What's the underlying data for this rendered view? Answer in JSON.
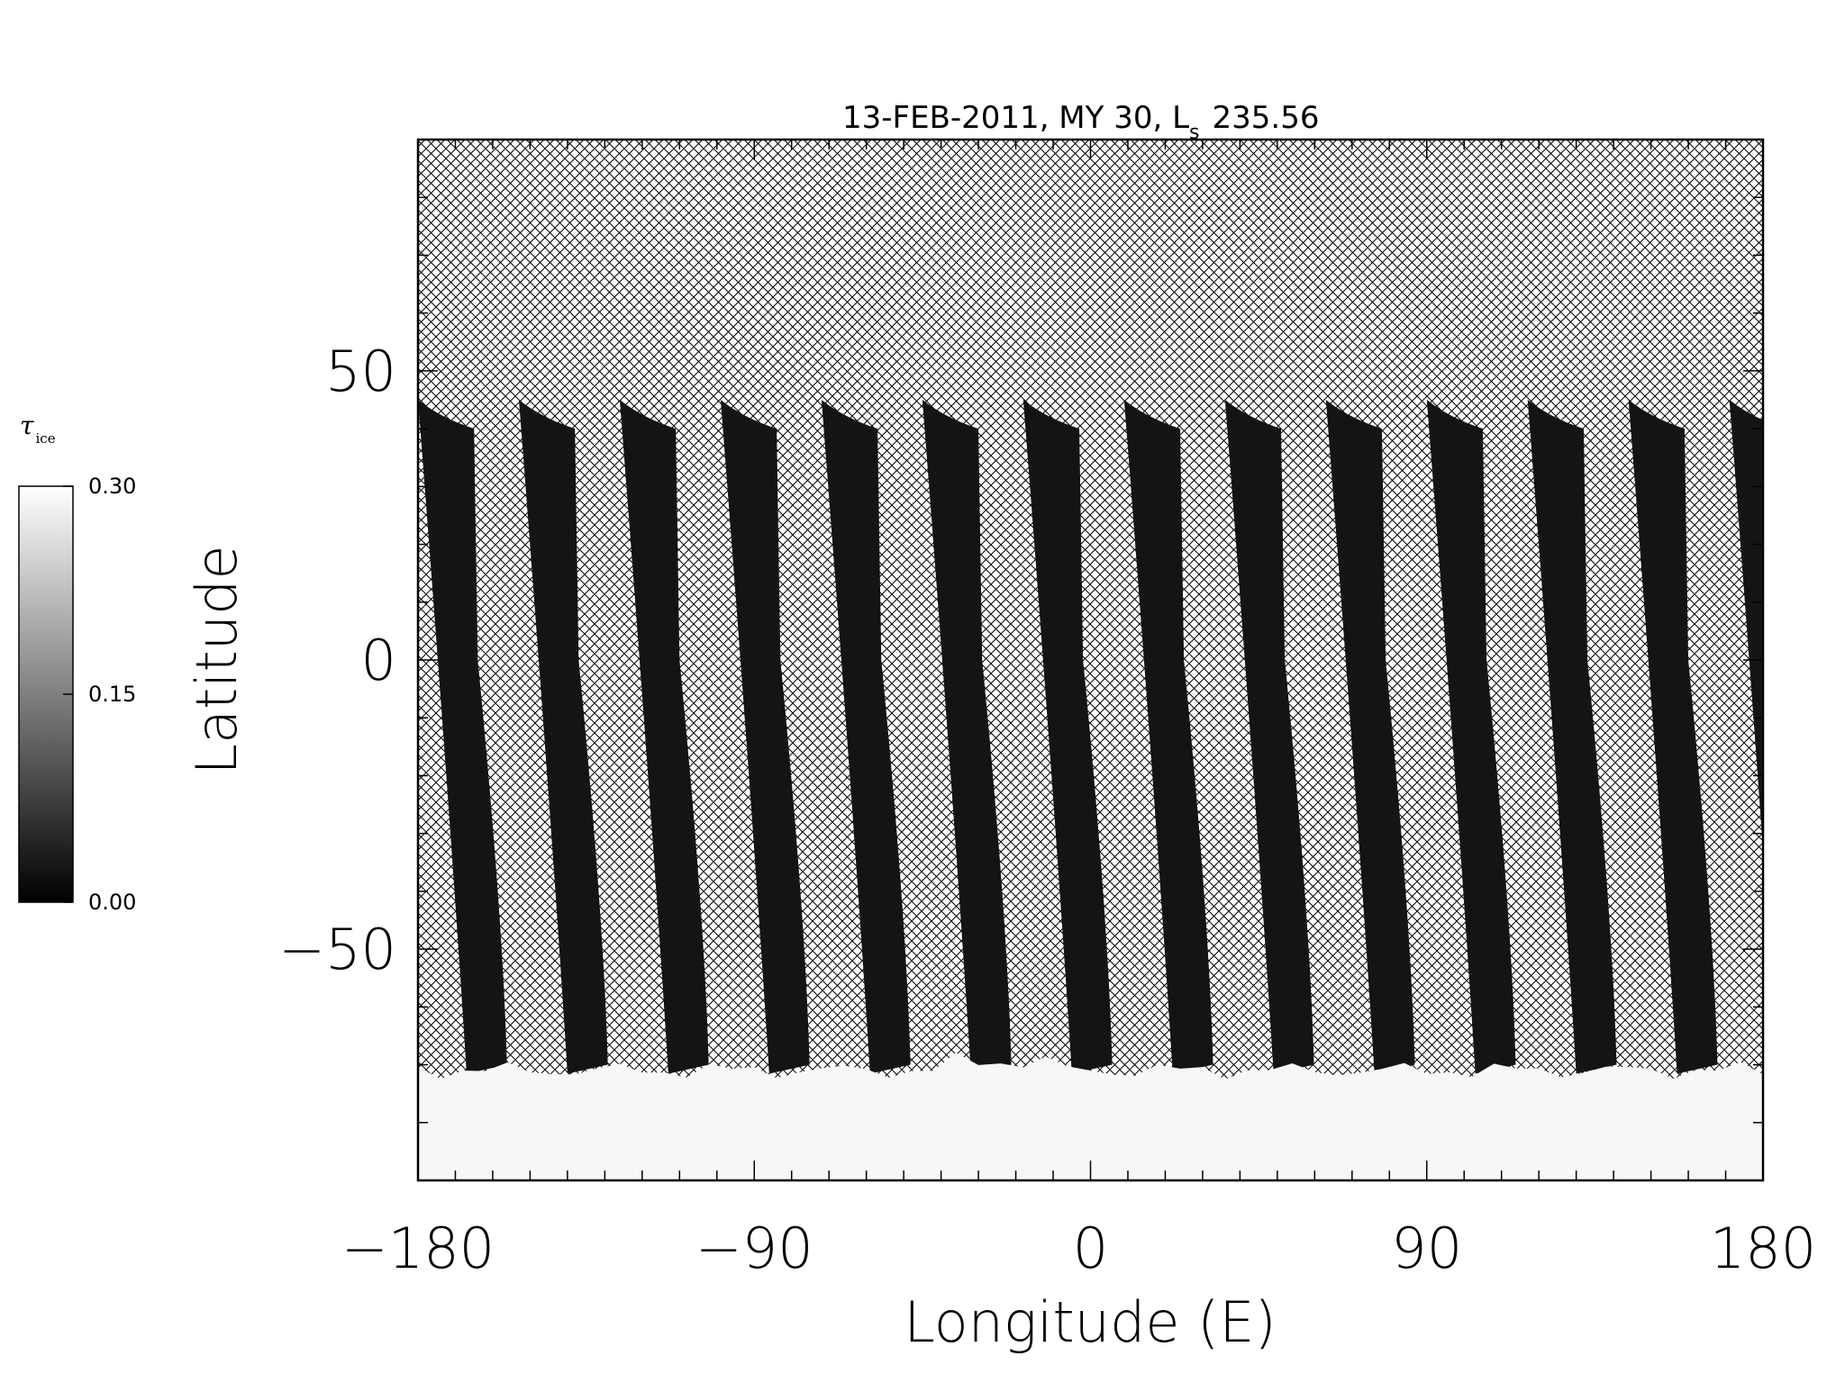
{
  "chart_data": {
    "type": "heatmap",
    "title": {
      "main": "13-FEB-2011, MY 30,  L",
      "sub": "s",
      "value": "235.56"
    },
    "xlabel": "Longitude (E)",
    "ylabel": "Latitude",
    "xlim": [
      -180,
      180
    ],
    "ylim": [
      -90,
      90
    ],
    "xticks": [
      -180,
      -90,
      0,
      90,
      180
    ],
    "yticks": [
      -50,
      0,
      50
    ],
    "xtick_labels": [
      "−180",
      "−90",
      "0",
      "90",
      "180"
    ],
    "ytick_labels": [
      "−50",
      "0",
      "50"
    ],
    "missing_data": "cross-hatched",
    "swaths": {
      "count": 14,
      "top_lat": 45,
      "bottom_lat": -70,
      "top_lon": [
        -180,
        -153,
        -126,
        -99,
        -72,
        -45,
        -18,
        9,
        36,
        63,
        90,
        117,
        144,
        171
      ],
      "width_deg": 15,
      "tilt_deg": 13
    },
    "polar_ice_boundary_lat": -71,
    "colorbar": {
      "label": "τ",
      "label_sub": "ice",
      "min": 0.0,
      "max": 0.3,
      "ticks": [
        "0.00",
        "0.15",
        "0.30"
      ],
      "colormap": "grayscale"
    },
    "colors": {
      "swath": "#141414",
      "ice": "#f7f7f7",
      "hatch": "#000000",
      "background": "#ffffff"
    }
  }
}
